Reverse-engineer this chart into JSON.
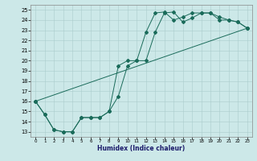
{
  "xlabel": "Humidex (Indice chaleur)",
  "bg_color": "#cce8e8",
  "grid_color": "#aacccc",
  "line_color": "#1a6b5a",
  "xlim": [
    -0.5,
    23.5
  ],
  "ylim": [
    12.5,
    25.5
  ],
  "xticks": [
    0,
    1,
    2,
    3,
    4,
    5,
    6,
    7,
    8,
    9,
    10,
    11,
    12,
    13,
    14,
    15,
    16,
    17,
    18,
    19,
    20,
    21,
    22,
    23
  ],
  "yticks": [
    13,
    14,
    15,
    16,
    17,
    18,
    19,
    20,
    21,
    22,
    23,
    24,
    25
  ],
  "line1_x": [
    0,
    1,
    2,
    3,
    4,
    5,
    6,
    7,
    8,
    9,
    10,
    11,
    12,
    13,
    14,
    15,
    16,
    17,
    18,
    19,
    20,
    21,
    22,
    23
  ],
  "line1_y": [
    16.0,
    14.7,
    13.2,
    13.0,
    13.0,
    14.4,
    14.4,
    14.4,
    15.0,
    16.5,
    19.5,
    20.0,
    20.0,
    22.8,
    24.7,
    24.8,
    23.8,
    24.2,
    24.7,
    24.7,
    24.0,
    24.0,
    23.8,
    23.2
  ],
  "line2_x": [
    0,
    1,
    2,
    3,
    4,
    5,
    6,
    7,
    8,
    9,
    10,
    11,
    12,
    13,
    14,
    15,
    16,
    17,
    18,
    19,
    20,
    21,
    22,
    23
  ],
  "line2_y": [
    16.0,
    14.7,
    13.2,
    13.0,
    13.0,
    14.4,
    14.4,
    14.4,
    15.0,
    19.5,
    20.0,
    20.0,
    22.8,
    24.7,
    24.8,
    24.0,
    24.3,
    24.7,
    24.7,
    24.7,
    24.3,
    24.0,
    23.8,
    23.2
  ],
  "line3_x": [
    0,
    23
  ],
  "line3_y": [
    16.0,
    23.2
  ]
}
